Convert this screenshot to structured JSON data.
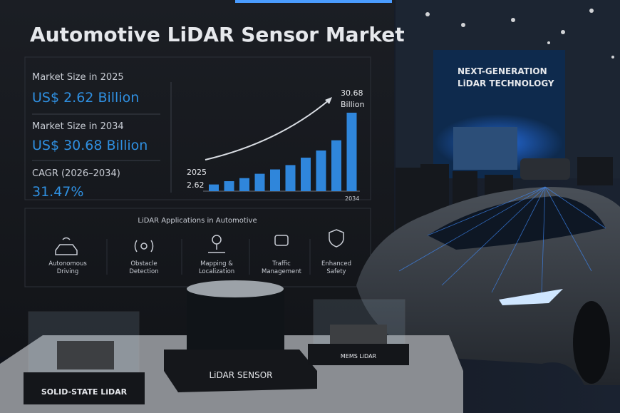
{
  "header": {
    "title": "Automotive LiDAR Sensor Market"
  },
  "stats": [
    {
      "label": "Market Size in 2025",
      "value": "US$ 2.62 Billion"
    },
    {
      "label": "Market Size in 2034",
      "value": "US$ 30.68 Billion"
    },
    {
      "label": "CAGR (2026–2034)",
      "value": "31.47%"
    }
  ],
  "chart": {
    "start_year": "2025",
    "start_value": "2.62",
    "end_year": "2034",
    "end_value": "30.68",
    "end_unit": "Billion",
    "values": [
      2.62,
      3.9,
      5.1,
      6.8,
      8.5,
      10.2,
      13.1,
      15.9,
      19.9,
      30.68
    ],
    "color": "#2f86db"
  },
  "applications": {
    "title": "LiDAR Applications in Automotive",
    "items": [
      "Autonomous Driving",
      "Obstacle Detection",
      "Mapping & Localization",
      "Traffic Management",
      "Enhanced Safety"
    ]
  },
  "banner": {
    "line1": "NEXT-GENERATION",
    "line2": "LiDAR TECHNOLOGY"
  },
  "products": [
    "SOLID-STATE LiDAR",
    "LiDAR SENSOR",
    "MEMS LiDAR"
  ]
}
